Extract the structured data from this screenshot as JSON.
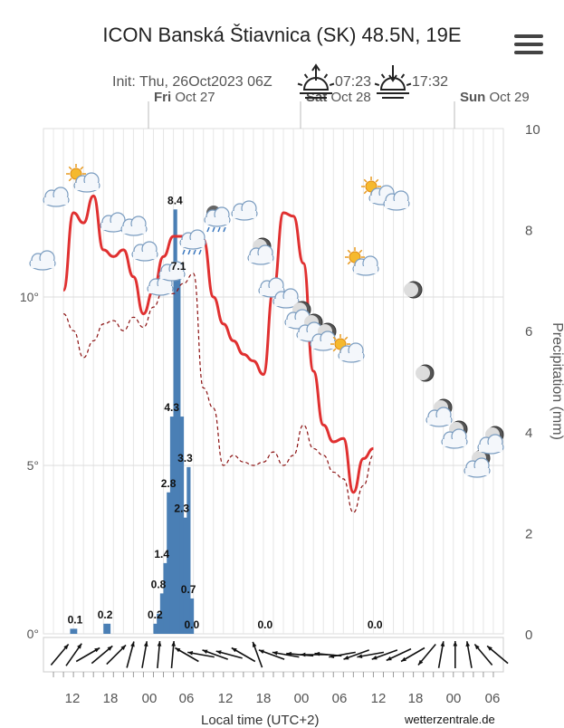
{
  "header": {
    "title": "ICON Banská Štiavnica (SK) 48.5N, 19E",
    "init": "Init: Thu, 26Oct2023 06Z",
    "sunrise": "07:23",
    "sunset": "17:32"
  },
  "days": [
    {
      "name": "Fri",
      "date": "Oct 27"
    },
    {
      "name": "Sat",
      "date": "Oct 28"
    },
    {
      "name": "Sun",
      "date": "Oct 29"
    }
  ],
  "footer": {
    "xlabel": "Local time (UTC+2)",
    "source": "wetterzentrale.de"
  },
  "chart_data": {
    "type": "line+bar",
    "x_tick_labels": [
      "12",
      "18",
      "00",
      "06",
      "12",
      "18",
      "00",
      "06",
      "12",
      "18",
      "00",
      "06"
    ],
    "y_left": {
      "ticks": [
        "0°",
        "5°",
        "10°"
      ],
      "range": [
        0,
        15
      ]
    },
    "y_right": {
      "label": "Precipitation (mm)",
      "ticks": [
        "0",
        "2",
        "4",
        "6",
        "8",
        "10"
      ],
      "range": [
        0,
        10
      ]
    },
    "hours": [
      6,
      9,
      12,
      15,
      18,
      21,
      24,
      27,
      30,
      33,
      36,
      39,
      42,
      45,
      48,
      51,
      54,
      57,
      60,
      63,
      66,
      69,
      72,
      75,
      78,
      81,
      84,
      87,
      90,
      93,
      96,
      99,
      102,
      105,
      108,
      111,
      114,
      117,
      120,
      123,
      126,
      129,
      132
    ],
    "series": [
      {
        "name": "",
        "color": "#e03030",
        "values": [
          10.2,
          12.5,
          12.2,
          13.0,
          11.4,
          11.2,
          11.4,
          10.6,
          9.5,
          10.2,
          11.2,
          11.8,
          11.8,
          11.8,
          11.7,
          10.0,
          9.2,
          8.7,
          8.3,
          8.1,
          7.7,
          10.2,
          12.5,
          12.4,
          11.0,
          7.8,
          6.2,
          5.7,
          5.8,
          4.2,
          5.2,
          5.5
        ]
      },
      {
        "name": "",
        "color": "#8b1010",
        "dash": "4,3",
        "values": [
          9.5,
          9.0,
          8.2,
          8.7,
          9.2,
          9.3,
          9.0,
          9.4,
          9.1,
          9.7,
          10.2,
          10.1,
          10.4,
          10.7,
          7.3,
          6.7,
          5.0,
          5.3,
          5.1,
          5.0,
          5.1,
          5.4,
          5.0,
          5.3,
          6.2,
          5.5,
          5.3,
          4.8,
          4.6,
          3.6,
          4.4,
          5.3
        ]
      }
    ],
    "temp_hours": [
      6,
      9,
      12,
      15,
      18,
      21,
      24,
      27,
      30,
      33,
      36,
      39,
      42,
      45,
      48,
      51,
      54,
      57,
      60,
      63,
      66,
      69,
      72,
      75,
      78,
      81,
      84,
      87,
      90,
      93,
      96,
      99
    ],
    "precip": [
      {
        "hour": 9,
        "value": 0.1,
        "label": "0.1"
      },
      {
        "hour": 18,
        "value": 0.2,
        "label": "0.2"
      },
      {
        "hour": 33,
        "value": 0.2,
        "label": "0.2"
      },
      {
        "hour": 34,
        "value": 0.8,
        "label": "0.8"
      },
      {
        "hour": 35,
        "value": 1.4,
        "label": "1.4"
      },
      {
        "hour": 37,
        "value": 2.8,
        "label": "2.8"
      },
      {
        "hour": 38,
        "value": 4.3,
        "label": "4.3"
      },
      {
        "hour": 39,
        "value": 8.4,
        "label": "8.4"
      },
      {
        "hour": 40,
        "value": 7.1,
        "label": "7.1"
      },
      {
        "hour": 41,
        "value": 2.3,
        "label": "2.3"
      },
      {
        "hour": 42,
        "value": 3.3,
        "label": "3.3"
      },
      {
        "hour": 43,
        "value": 0.7,
        "label": "0.7"
      },
      {
        "hour": 44,
        "value": 0.0,
        "label": "0.0"
      },
      {
        "hour": 66,
        "value": 0.0,
        "label": "0.0"
      },
      {
        "hour": 99,
        "value": 0.0,
        "label": "0.0"
      }
    ],
    "wind_dirs_deg": [
      40,
      35,
      60,
      50,
      45,
      15,
      10,
      5,
      5,
      300,
      280,
      290,
      285,
      300,
      340,
      290,
      280,
      275,
      270,
      275,
      260,
      250,
      260,
      250,
      245,
      240,
      220,
      10,
      0,
      350,
      320,
      310
    ],
    "weather_icons": [
      "cloud",
      "sun-cloud",
      "cloud",
      "cloud",
      "cloud",
      "cloud",
      "cloud",
      "rain-cloud",
      "storm-cloud",
      "moon",
      "cloud",
      "moon-cloud",
      "moon-cloud",
      "sun-cloud",
      "sun-cloud",
      "sun-cloud",
      "moon",
      "moon",
      "moon-cloud",
      "moon-cloud",
      "moon-cloud"
    ]
  }
}
